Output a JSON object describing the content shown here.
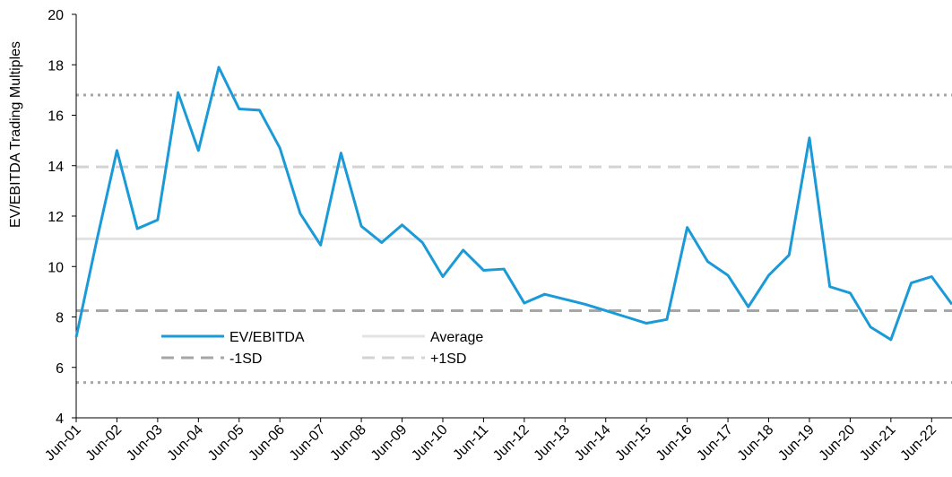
{
  "chart_data": {
    "type": "line",
    "y_label": "EV/EBITDA Trading Multiples",
    "categories": [
      "Jun-01",
      null,
      "Jun-02",
      null,
      "Jun-03",
      null,
      "Jun-04",
      null,
      "Jun-05",
      null,
      "Jun-06",
      null,
      "Jun-07",
      null,
      "Jun-08",
      null,
      "Jun-09",
      null,
      "Jun-10",
      null,
      "Jun-11",
      null,
      "Jun-12",
      null,
      "Jun-13",
      null,
      "Jun-14",
      null,
      "Jun-15",
      null,
      "Jun-16",
      null,
      "Jun-17",
      null,
      "Jun-18",
      null,
      "Jun-19",
      null,
      "Jun-20",
      null,
      "Jun-21",
      null,
      "Jun-22",
      null
    ],
    "series": [
      {
        "name": "EV/EBITDA",
        "color": "#1a9ad6",
        "values": [
          7.2,
          11.0,
          14.6,
          11.5,
          11.85,
          16.9,
          14.6,
          17.9,
          16.25,
          16.2,
          14.7,
          12.1,
          10.85,
          14.5,
          11.6,
          10.95,
          11.65,
          10.95,
          9.6,
          10.65,
          9.85,
          9.9,
          8.55,
          8.9,
          8.7,
          8.5,
          8.25,
          8.0,
          7.75,
          7.9,
          11.55,
          10.2,
          9.65,
          8.4,
          9.65,
          10.45,
          15.1,
          9.2,
          8.95,
          7.6,
          7.1,
          9.35,
          9.6,
          8.5
        ]
      }
    ],
    "hlines": [
      {
        "name": "Average",
        "value": 11.1,
        "color": "#e3e3e3",
        "dash": "solid"
      },
      {
        "name": "-1SD",
        "value": 8.25,
        "color": "#a6a6a6",
        "dash": "dashed"
      },
      {
        "name": "+1SD",
        "value": 13.95,
        "color": "#d3d3d3",
        "dash": "dashed"
      },
      {
        "value": 16.8,
        "color": "#a6a6a6",
        "dash": "dotted"
      },
      {
        "value": 5.4,
        "color": "#a6a6a6",
        "dash": "dotted"
      }
    ],
    "ylim": [
      4,
      20
    ],
    "yticks": [
      4,
      6,
      8,
      10,
      12,
      14,
      16,
      18,
      20
    ]
  }
}
